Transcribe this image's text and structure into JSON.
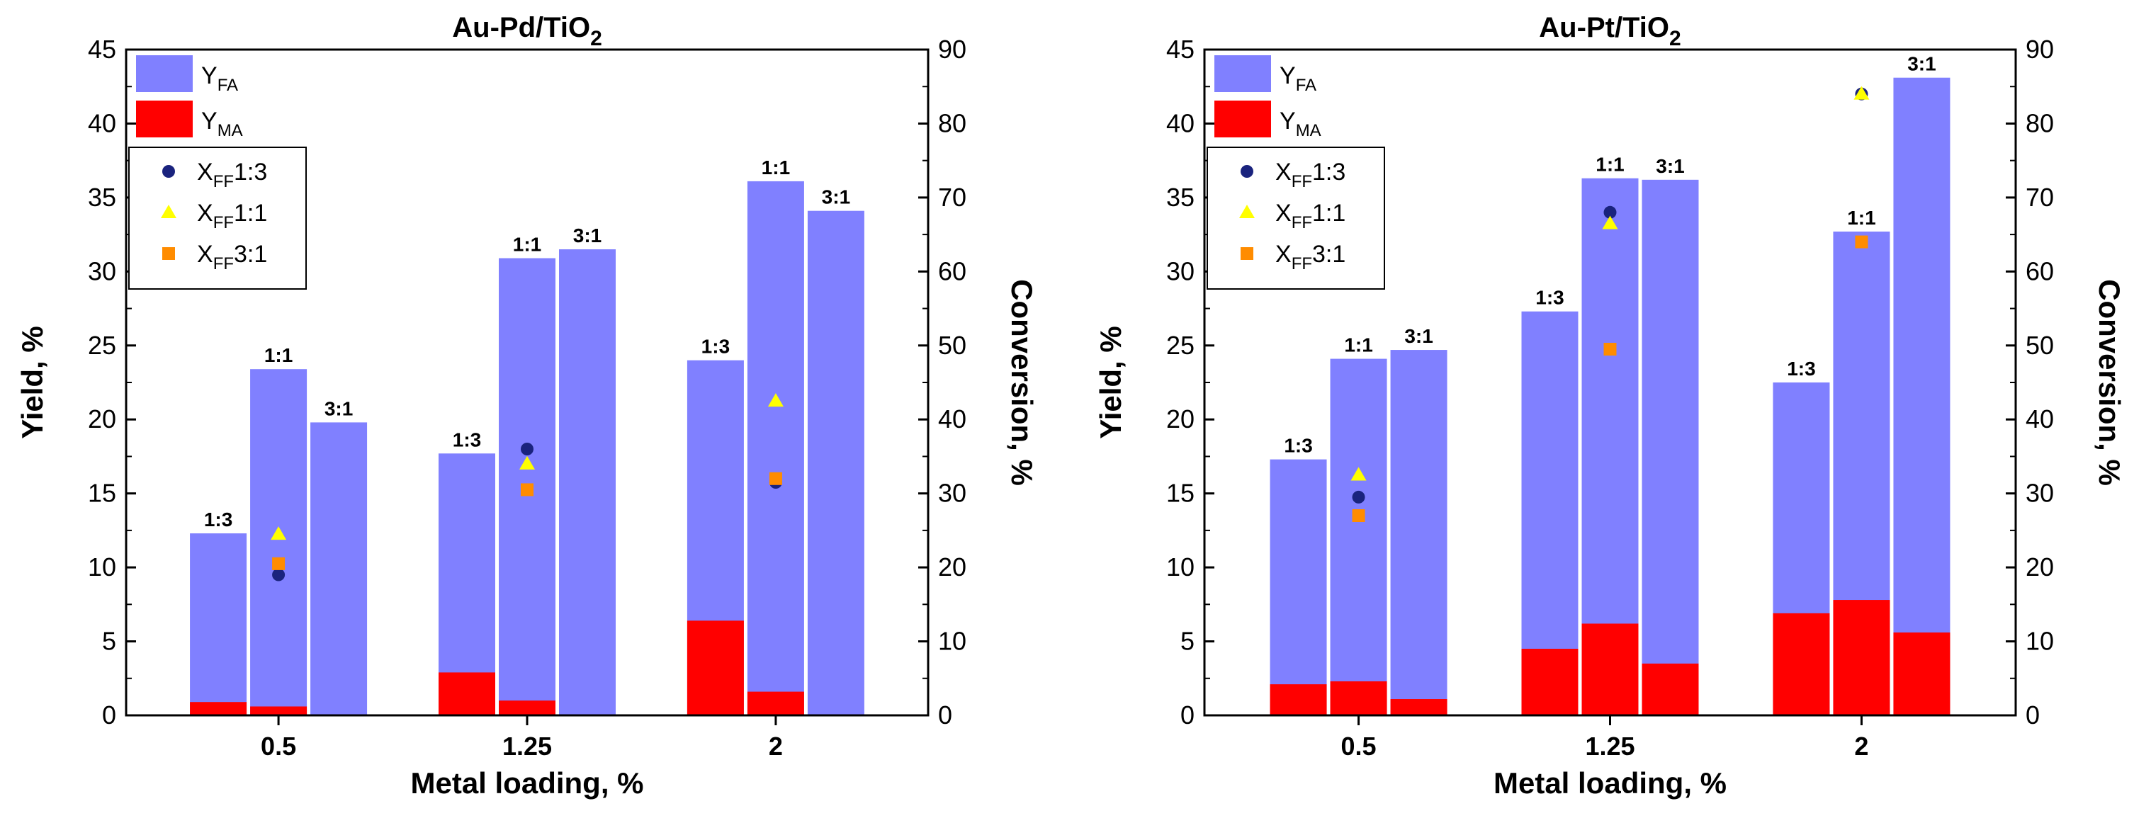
{
  "chart_data": [
    {
      "type": "bar",
      "title": "Au-Pd/TiO2",
      "title_parts": [
        "Au-Pd/TiO",
        "2"
      ],
      "xlabel": "Metal loading, %",
      "ylabel": "Yield, %",
      "y2label": "Conversion, %",
      "categories": [
        "0.5",
        "1.25",
        "2"
      ],
      "ratios": [
        "1:3",
        "1:1",
        "3:1"
      ],
      "ylim": [
        0,
        45
      ],
      "yticks": [
        "0",
        "5",
        "10",
        "15",
        "20",
        "25",
        "30",
        "35",
        "40",
        "45"
      ],
      "y2lim": [
        0,
        90
      ],
      "y2ticks": [
        "0",
        "10",
        "20",
        "30",
        "40",
        "50",
        "60",
        "70",
        "80",
        "90"
      ],
      "bar_labels": [
        [
          "1:3",
          "1:1",
          "3:1"
        ],
        [
          "1:3",
          "1:1",
          "3:1"
        ],
        [
          "1:3",
          "1:1",
          "3:1"
        ]
      ],
      "series": [
        {
          "name": "YFA",
          "label_main": "Y",
          "label_sub": "FA",
          "color": "#8080ff",
          "stacked_total": [
            [
              12.3,
              23.4,
              19.8
            ],
            [
              17.7,
              30.9,
              31.5
            ],
            [
              24.0,
              36.1,
              34.1
            ]
          ]
        },
        {
          "name": "YMA",
          "label_main": "Y",
          "label_sub": "MA",
          "color": "#ff0000",
          "values": [
            [
              0.9,
              0.6,
              0.0
            ],
            [
              2.9,
              1.0,
              0.0
            ],
            [
              6.4,
              1.6,
              0.0
            ]
          ]
        }
      ],
      "conversion_series": [
        {
          "name": "XFF1:3",
          "label_main": "X",
          "label_sub": "FF",
          "label_tail": "1:3",
          "marker": "circle",
          "color": "#1a237e",
          "values": [
            19.0,
            36.0,
            31.5
          ]
        },
        {
          "name": "XFF1:1",
          "label_main": "X",
          "label_sub": "FF",
          "label_tail": "1:1",
          "marker": "triangle",
          "color": "#ffff00",
          "values": [
            24.5,
            34.0,
            42.5
          ]
        },
        {
          "name": "XFF3:1",
          "label_main": "X",
          "label_sub": "FF",
          "label_tail": "3:1",
          "marker": "square",
          "color": "#ff8c00",
          "values": [
            20.5,
            30.5,
            32.0
          ]
        }
      ]
    },
    {
      "type": "bar",
      "title": "Au-Pt/TiO2",
      "title_parts": [
        "Au-Pt/TiO",
        "2"
      ],
      "xlabel": "Metal loading, %",
      "ylabel": "Yield, %",
      "y2label": "Conversion, %",
      "categories": [
        "0.5",
        "1.25",
        "2"
      ],
      "ratios": [
        "1:3",
        "1:1",
        "3:1"
      ],
      "ylim": [
        0,
        45
      ],
      "yticks": [
        "0",
        "5",
        "10",
        "15",
        "20",
        "25",
        "30",
        "35",
        "40",
        "45"
      ],
      "y2lim": [
        0,
        90
      ],
      "y2ticks": [
        "0",
        "10",
        "20",
        "30",
        "40",
        "50",
        "60",
        "70",
        "80",
        "90"
      ],
      "bar_labels": [
        [
          "1:3",
          "1:1",
          "3:1"
        ],
        [
          "1:3",
          "1:1",
          "3:1"
        ],
        [
          "1:3",
          "1:1",
          "3:1"
        ]
      ],
      "series": [
        {
          "name": "YFA",
          "label_main": "Y",
          "label_sub": "FA",
          "color": "#8080ff",
          "stacked_total": [
            [
              17.3,
              24.1,
              24.7
            ],
            [
              27.3,
              36.3,
              36.2
            ],
            [
              22.5,
              32.7,
              43.1
            ]
          ]
        },
        {
          "name": "YMA",
          "label_main": "Y",
          "label_sub": "MA",
          "color": "#ff0000",
          "values": [
            [
              2.1,
              2.3,
              1.1
            ],
            [
              4.5,
              6.2,
              3.5
            ],
            [
              6.9,
              7.8,
              5.6
            ]
          ]
        }
      ],
      "conversion_series": [
        {
          "name": "XFF1:3",
          "label_main": "X",
          "label_sub": "FF",
          "label_tail": "1:3",
          "marker": "circle",
          "color": "#1a237e",
          "values": [
            29.5,
            68.0,
            84.0
          ]
        },
        {
          "name": "XFF1:1",
          "label_main": "X",
          "label_sub": "FF",
          "label_tail": "1:1",
          "marker": "triangle",
          "color": "#ffff00",
          "values": [
            32.5,
            66.5,
            84.0
          ]
        },
        {
          "name": "XFF3:1",
          "label_main": "X",
          "label_sub": "FF",
          "label_tail": "3:1",
          "marker": "square",
          "color": "#ff8c00",
          "values": [
            27.0,
            49.5,
            64.0
          ]
        }
      ]
    }
  ]
}
